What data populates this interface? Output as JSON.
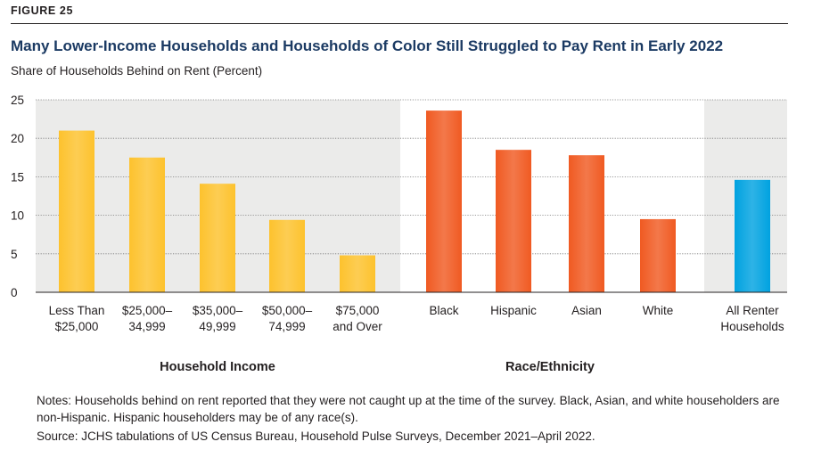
{
  "figure_label": "FIGURE 25",
  "title": "Many Lower-Income Households and Households of Color Still Struggled to Pay Rent in Early 2022",
  "subtitle": "Share of Households Behind on Rent (Percent)",
  "notes": "Notes: Households behind on rent reported that they were not caught up at the time of the survey. Black, Asian, and white householders are non-Hispanic. Hispanic householders may be of any race(s).",
  "source": "Source: JCHS tabulations of US Census Bureau, Household Pulse Surveys, December 2021–April 2022.",
  "colors": {
    "income": "#fdc22d",
    "race": "#f05a22",
    "all": "#00a2e0",
    "panel": "#ebebea",
    "title": "#1b3a63"
  },
  "chart_data": {
    "type": "bar",
    "ylim": [
      0,
      25
    ],
    "yticks": [
      0,
      5,
      10,
      15,
      20,
      25
    ],
    "grid": true,
    "groups": [
      {
        "name": "Household Income",
        "shaded": true,
        "color": "income",
        "categories": [
          [
            "Less Than",
            "$25,000"
          ],
          [
            "$25,000–",
            "34,999"
          ],
          [
            "$35,000–",
            "49,999"
          ],
          [
            "$50,000–",
            "74,999"
          ],
          [
            "$75,000",
            "and Over"
          ]
        ],
        "values": [
          21.0,
          17.5,
          14.1,
          9.4,
          4.8
        ]
      },
      {
        "name": "Race/Ethnicity",
        "shaded": false,
        "color": "race",
        "categories": [
          [
            "Black"
          ],
          [
            "Hispanic"
          ],
          [
            "Asian"
          ],
          [
            "White"
          ]
        ],
        "values": [
          23.6,
          18.5,
          17.8,
          9.5
        ]
      },
      {
        "name": "",
        "shaded": true,
        "color": "all",
        "categories": [
          [
            "All Renter",
            "Households"
          ]
        ],
        "values": [
          14.6
        ]
      }
    ]
  }
}
